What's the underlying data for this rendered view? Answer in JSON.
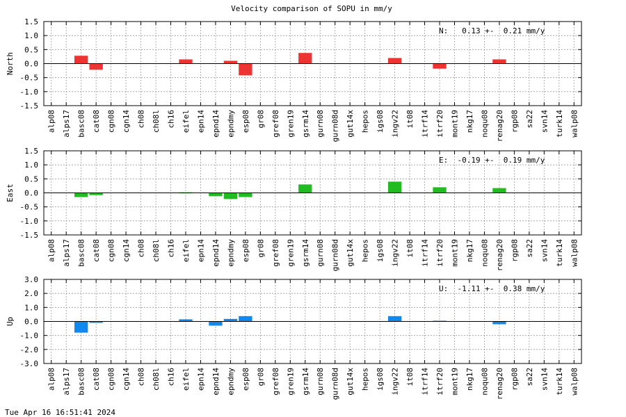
{
  "title": "Velocity comparison of SOPU in mm/y",
  "timestamp": "Tue Apr 16 16:51:41 2024",
  "chart_data": [
    {
      "type": "bar",
      "ylabel": "North",
      "ylim": [
        -1.5,
        1.5
      ],
      "yticks": [
        -1.5,
        -1.0,
        -0.5,
        0.0,
        0.5,
        1.0,
        1.5
      ],
      "ytick_labels": [
        "-1.5",
        "-1.0",
        "-0.5",
        "0.0",
        "0.5",
        "1.0",
        "1.5"
      ],
      "grid": true,
      "color": "#ee3333",
      "annotation": "N:   0.13 +-  0.21 mm/y",
      "categories": [
        "alp08",
        "alps17",
        "basc08",
        "cat08",
        "cgn08",
        "cgn14",
        "ch08",
        "ch08l",
        "ch16",
        "eifel",
        "epn14",
        "epnd14",
        "epndmy",
        "esp08",
        "gr08",
        "gref08",
        "gren19",
        "gsrm14",
        "gurn08",
        "gurn08d",
        "gut14x",
        "hepos",
        "igs08",
        "ingv22",
        "it08",
        "itrf14",
        "itrf20",
        "mont19",
        "nkg17",
        "noqu08",
        "renag20",
        "rgp08",
        "sa22",
        "svn14",
        "turk14",
        "walp08"
      ],
      "values": [
        null,
        null,
        0.28,
        -0.22,
        null,
        null,
        null,
        null,
        null,
        0.15,
        null,
        null,
        0.1,
        -0.42,
        null,
        null,
        null,
        0.38,
        null,
        null,
        null,
        null,
        null,
        0.2,
        null,
        null,
        -0.18,
        null,
        null,
        null,
        0.15,
        null,
        null,
        null,
        null,
        null
      ]
    },
    {
      "type": "bar",
      "ylabel": "East",
      "ylim": [
        -1.5,
        1.5
      ],
      "yticks": [
        -1.5,
        -1.0,
        -0.5,
        0.0,
        0.5,
        1.0,
        1.5
      ],
      "ytick_labels": [
        "-1.5",
        "-1.0",
        "-0.5",
        "0.0",
        "0.5",
        "1.0",
        "1.5"
      ],
      "grid": true,
      "color": "#22bb22",
      "annotation": "E:  -0.19 +-  0.19 mm/y",
      "categories": [
        "alp08",
        "alps17",
        "basc08",
        "cat08",
        "cgn08",
        "cgn14",
        "ch08",
        "ch08l",
        "ch16",
        "eifel",
        "epn14",
        "epnd14",
        "epndmy",
        "esp08",
        "gr08",
        "gref08",
        "gren19",
        "gsrm14",
        "gurn08",
        "gurn08d",
        "gut14x",
        "hepos",
        "igs08",
        "ingv22",
        "it08",
        "itrf14",
        "itrf20",
        "mont19",
        "nkg17",
        "noqu08",
        "renag20",
        "rgp08",
        "sa22",
        "svn14",
        "turk14",
        "walp08"
      ],
      "values": [
        null,
        null,
        -0.15,
        -0.08,
        null,
        null,
        null,
        null,
        null,
        0.02,
        null,
        -0.12,
        -0.22,
        -0.15,
        null,
        null,
        null,
        0.3,
        null,
        null,
        null,
        null,
        null,
        0.4,
        null,
        null,
        0.2,
        null,
        null,
        null,
        0.17,
        null,
        null,
        null,
        null,
        null
      ]
    },
    {
      "type": "bar",
      "ylabel": "Up",
      "ylim": [
        -3.0,
        3.0
      ],
      "yticks": [
        -3.0,
        -2.0,
        -1.0,
        0.0,
        1.0,
        2.0,
        3.0
      ],
      "ytick_labels": [
        "-3.0",
        "-2.0",
        "-1.0",
        "0.0",
        "1.0",
        "2.0",
        "3.0"
      ],
      "grid": true,
      "color": "#1188ee",
      "annotation": "U:  -1.11 +-  0.38 mm/y",
      "categories": [
        "alp08",
        "alps17",
        "basc08",
        "cat08",
        "cgn08",
        "cgn14",
        "ch08",
        "ch08l",
        "ch16",
        "eifel",
        "epn14",
        "epnd14",
        "epndmy",
        "esp08",
        "gr08",
        "gref08",
        "gren19",
        "gsrm14",
        "gurn08",
        "gurn08d",
        "gut14x",
        "hepos",
        "igs08",
        "ingv22",
        "it08",
        "itrf14",
        "itrf20",
        "mont19",
        "nkg17",
        "noqu08",
        "renag20",
        "rgp08",
        "sa22",
        "svn14",
        "turk14",
        "walp08"
      ],
      "values": [
        null,
        null,
        -0.8,
        -0.1,
        null,
        null,
        null,
        null,
        null,
        0.15,
        null,
        -0.3,
        0.18,
        0.38,
        null,
        null,
        null,
        null,
        null,
        null,
        null,
        null,
        null,
        0.38,
        null,
        null,
        0.05,
        null,
        null,
        null,
        -0.2,
        null,
        null,
        null,
        null,
        null
      ]
    }
  ]
}
